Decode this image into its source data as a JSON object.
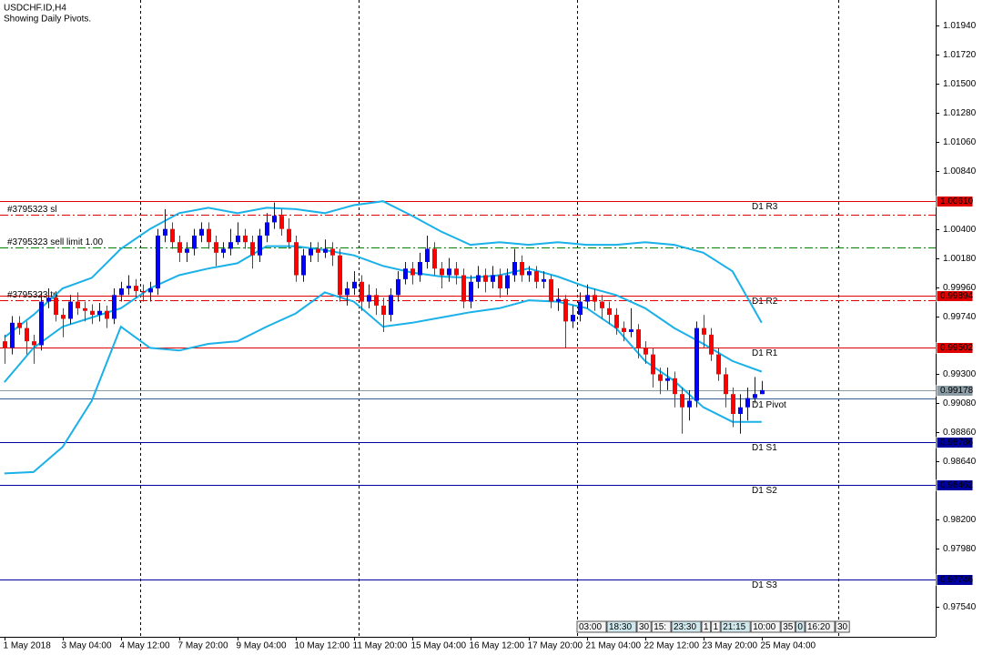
{
  "chart_data": {
    "type": "candlestick",
    "title": "USDCHF.ID,H4",
    "subtitle": "Showing Daily Pivots.",
    "xlim": [
      -0.6,
      127.9
    ],
    "ylim": [
      0.97313,
      1.02133
    ],
    "xticks": [
      {
        "value": 0,
        "label": "1 May 2018"
      },
      {
        "value": 8,
        "label": "3 May 04:00"
      },
      {
        "value": 16,
        "label": "4 May 12:00"
      },
      {
        "value": 24,
        "label": "7 May 20:00"
      },
      {
        "value": 32,
        "label": "9 May 04:00"
      },
      {
        "value": 40,
        "label": "10 May 12:00"
      },
      {
        "value": 48,
        "label": "11 May 20:00"
      },
      {
        "value": 56,
        "label": "15 May 04:00"
      },
      {
        "value": 64,
        "label": "16 May 12:00"
      },
      {
        "value": 72,
        "label": "17 May 20:00"
      },
      {
        "value": 80,
        "label": "21 May 04:00"
      },
      {
        "value": 88,
        "label": "22 May 12:00"
      },
      {
        "value": 96,
        "label": "23 May 20:00"
      },
      {
        "value": 104,
        "label": "25 May 04:00"
      }
    ],
    "yticks": [
      {
        "value": 1.0194,
        "label": "1.01940"
      },
      {
        "value": 1.0172,
        "label": "1.01720"
      },
      {
        "value": 1.015,
        "label": "1.01500"
      },
      {
        "value": 1.0128,
        "label": "1.01280"
      },
      {
        "value": 1.0106,
        "label": "1.01060"
      },
      {
        "value": 1.0084,
        "label": "1.00840"
      },
      {
        "value": 1.004,
        "label": "1.00400"
      },
      {
        "value": 1.0018,
        "label": "1.00180"
      },
      {
        "value": 0.9996,
        "label": "0.99960"
      },
      {
        "value": 0.9974,
        "label": "0.99740"
      },
      {
        "value": 0.993,
        "label": "0.99300"
      },
      {
        "value": 0.9908,
        "label": "0.99080"
      },
      {
        "value": 0.9886,
        "label": "0.98860"
      },
      {
        "value": 0.9864,
        "label": "0.98640"
      },
      {
        "value": 0.982,
        "label": "0.98200"
      },
      {
        "value": 0.9798,
        "label": "0.97980"
      },
      {
        "value": 0.9754,
        "label": "0.97540"
      }
    ],
    "up_color": "#0000ff",
    "down_color": "#ff0000",
    "open": [
      0.9955,
      0.995,
      0.9969,
      0.9965,
      0.9955,
      0.9952,
      0.9985,
      0.9988,
      0.9975,
      0.9972,
      0.9985,
      0.998,
      0.9978,
      0.9975,
      0.9978,
      0.9972,
      0.999,
      0.9995,
      0.9997,
      0.9993,
      0.9992,
      0.9995,
      1.0035,
      1.004,
      1.003,
      1.0022,
      1.0025,
      1.0035,
      1.004,
      1.003,
      1.0022,
      1.0025,
      1.003,
      1.0035,
      1.003,
      1.002,
      1.0035,
      1.0045,
      1.005,
      1.004,
      1.003,
      1.0005,
      1.002,
      1.0025,
      1.0022,
      1.0025,
      1.002,
      0.999,
      0.9995,
      1.0,
      0.9985,
      0.999,
      0.9982,
      0.9975,
      0.999,
      1.0002,
      1.001,
      1.0005,
      1.0015,
      1.0025,
      1.001,
      1.0005,
      1.001,
      1.0005,
      0.9985,
      1.0,
      1.0005,
      1.0,
      1.0005,
      0.9995,
      1.0005,
      1.0015,
      1.0005,
      1.0008,
      1.0,
      1.0002,
      0.9985,
      0.9987,
      0.997,
      0.9975,
      0.9985,
      0.999,
      0.9985,
      0.998,
      0.9975,
      0.9965,
      0.9962,
      0.9964,
      0.995,
      0.9945,
      0.993,
      0.9925,
      0.9927,
      0.9915,
      0.9905,
      0.991,
      0.9965,
      0.996,
      0.9945,
      0.993,
      0.9915,
      0.99,
      0.9905,
      0.9912,
      0.9915
    ],
    "high": [
      0.996,
      0.9974,
      0.9974,
      0.997,
      0.996,
      0.9992,
      0.9995,
      0.9993,
      0.998,
      0.999,
      0.9992,
      0.9985,
      0.9983,
      0.9984,
      0.9982,
      0.9995,
      1.0,
      1.0005,
      1.0002,
      0.9998,
      1.0,
      1.004,
      1.0055,
      1.0045,
      1.0035,
      1.003,
      1.004,
      1.0045,
      1.0045,
      1.0035,
      1.003,
      1.004,
      1.0045,
      1.004,
      1.0035,
      1.004,
      1.0052,
      1.006,
      1.0055,
      1.0048,
      1.0035,
      1.0025,
      1.003,
      1.003,
      1.0032,
      1.003,
      1.0025,
      1.0,
      1.0008,
      1.0005,
      0.9998,
      0.9995,
      0.9988,
      0.9995,
      1.0008,
      1.0015,
      1.0015,
      1.0022,
      1.0035,
      1.003,
      1.0015,
      1.0018,
      1.0015,
      1.001,
      1.0005,
      1.0012,
      1.001,
      1.0012,
      1.001,
      1.001,
      1.0025,
      1.002,
      1.0012,
      1.0012,
      1.0008,
      1.0005,
      0.9995,
      0.999,
      0.9982,
      0.9992,
      0.9998,
      0.9995,
      0.999,
      0.9985,
      0.998,
      0.997,
      0.998,
      0.9968,
      0.9955,
      0.995,
      0.9935,
      0.9935,
      0.9932,
      0.992,
      0.9918,
      0.997,
      0.9975,
      0.9965,
      0.995,
      0.9935,
      0.992,
      0.9915,
      0.992,
      0.9928,
      0.9925
    ],
    "low": [
      0.9938,
      0.9945,
      0.996,
      0.9945,
      0.9938,
      0.9948,
      0.998,
      0.997,
      0.9958,
      0.9968,
      0.9975,
      0.997,
      0.9968,
      0.997,
      0.9965,
      0.9968,
      0.9985,
      0.999,
      0.9988,
      0.9985,
      0.9985,
      0.999,
      1.003,
      1.0025,
      1.0015,
      1.0015,
      1.002,
      1.003,
      1.0025,
      1.0012,
      1.0018,
      1.002,
      1.0028,
      1.0025,
      1.001,
      1.0015,
      1.003,
      1.004,
      1.0035,
      1.0025,
      1.0,
      1.0,
      1.0015,
      1.0015,
      1.0018,
      1.0012,
      0.9985,
      0.9982,
      0.999,
      0.9978,
      0.998,
      0.9975,
      0.9962,
      0.997,
      0.9985,
      0.9998,
      0.9998,
      1.0,
      1.001,
      1.0005,
      0.9995,
      1.0,
      0.9998,
      0.998,
      0.998,
      0.9995,
      0.9992,
      0.9995,
      0.9988,
      0.999,
      1.0,
      1.0,
      1.0,
      0.9995,
      0.9995,
      0.998,
      0.9978,
      0.995,
      0.9965,
      0.997,
      0.998,
      0.9978,
      0.9972,
      0.9968,
      0.996,
      0.9955,
      0.9958,
      0.9942,
      0.9938,
      0.992,
      0.9915,
      0.9918,
      0.9905,
      0.9885,
      0.9895,
      0.9905,
      0.995,
      0.994,
      0.9925,
      0.9905,
      0.989,
      0.9885,
      0.9895,
      0.9908,
      0.9915
    ],
    "close": [
      0.995,
      0.9969,
      0.9965,
      0.9955,
      0.9952,
      0.9985,
      0.9988,
      0.9975,
      0.9972,
      0.9985,
      0.998,
      0.9978,
      0.9975,
      0.9978,
      0.9972,
      0.999,
      0.9995,
      0.9997,
      0.9993,
      0.9992,
      0.9995,
      1.0035,
      1.004,
      1.003,
      1.0022,
      1.0025,
      1.0035,
      1.004,
      1.003,
      1.0022,
      1.0025,
      1.003,
      1.0035,
      1.003,
      1.002,
      1.0035,
      1.0045,
      1.005,
      1.004,
      1.003,
      1.0005,
      1.002,
      1.0025,
      1.0022,
      1.0025,
      1.002,
      0.999,
      0.9995,
      1.0,
      0.9985,
      0.999,
      0.9982,
      0.9975,
      0.999,
      1.0002,
      1.001,
      1.0005,
      1.0015,
      1.0025,
      1.001,
      1.0005,
      1.001,
      1.0005,
      0.9985,
      1.0,
      1.0005,
      1.0,
      1.0005,
      0.9995,
      1.0005,
      1.0015,
      1.0005,
      1.0008,
      1.0,
      1.0002,
      0.9985,
      0.9987,
      0.997,
      0.9975,
      0.9985,
      0.999,
      0.9985,
      0.998,
      0.9975,
      0.9965,
      0.9962,
      0.9964,
      0.995,
      0.9945,
      0.993,
      0.9925,
      0.9927,
      0.9915,
      0.9905,
      0.991,
      0.9965,
      0.996,
      0.9945,
      0.993,
      0.9915,
      0.99,
      0.9905,
      0.9912,
      0.9915,
      0.9918
    ],
    "bands": [
      {
        "color": "#1ab0e8",
        "x": [
          0,
          4,
          8,
          12,
          16,
          20,
          24,
          28,
          32,
          36,
          40,
          44,
          48,
          52,
          56,
          60,
          64,
          68,
          72,
          76,
          80,
          84,
          88,
          92,
          96,
          100,
          104
        ],
        "values": [
          0.9958,
          0.9975,
          0.9995,
          1.0003,
          1.0025,
          1.004,
          1.0052,
          1.0056,
          1.0052,
          1.0056,
          1.0055,
          1.0052,
          1.0058,
          1.0061,
          1.005,
          1.0038,
          1.0028,
          1.003,
          1.0028,
          1.003,
          1.0028,
          1.0028,
          1.003,
          1.0028,
          1.0022,
          1.0008,
          0.9969
        ]
      },
      {
        "color": "#1ab0e8",
        "x": [
          0,
          4,
          8,
          12,
          16,
          20,
          24,
          28,
          32,
          36,
          40,
          44,
          48,
          52,
          56,
          60,
          64,
          68,
          72,
          76,
          80,
          84,
          88,
          92,
          96,
          100,
          104
        ],
        "values": [
          0.9924,
          0.995,
          0.9966,
          0.9973,
          0.998,
          0.9995,
          1.0005,
          1.001,
          1.0014,
          1.0027,
          1.0027,
          1.0024,
          1.002,
          1.0012,
          1.0007,
          1.0004,
          1.0003,
          1.0005,
          1.001,
          1.0004,
          0.9996,
          0.999,
          0.998,
          0.9965,
          0.9953,
          0.994,
          0.9932
        ]
      },
      {
        "color": "#1ab0e8",
        "x": [
          0,
          4,
          8,
          12,
          16,
          20,
          24,
          28,
          32,
          36,
          40,
          44,
          48,
          52,
          56,
          60,
          64,
          68,
          72,
          76,
          80,
          84,
          88,
          92,
          96,
          100,
          104
        ],
        "values": [
          0.9855,
          0.9856,
          0.9875,
          0.991,
          0.9966,
          0.995,
          0.9948,
          0.9953,
          0.9955,
          0.9966,
          0.9976,
          0.9992,
          0.9985,
          0.9966,
          0.9969,
          0.9973,
          0.9977,
          0.998,
          0.9986,
          0.9985,
          0.998,
          0.9965,
          0.994,
          0.9925,
          0.9905,
          0.9894,
          0.9894
        ]
      }
    ],
    "levels": [
      {
        "label": "D1 R3",
        "value": 1.0061,
        "value_label": "1.00610",
        "color": "#e00000"
      },
      {
        "label": "D1 R2",
        "value": 0.99894,
        "value_label": "0.99894",
        "color": "#e00000"
      },
      {
        "label": "D1 R1",
        "value": 0.99502,
        "value_label": "0.99502",
        "color": "#e00000"
      },
      {
        "label": "D1 Pivot",
        "value": 0.99118,
        "color": "#3a5a9a"
      },
      {
        "label": "D1 S1",
        "value": 0.98786,
        "value_label": "0.98786",
        "color": "#0000a0"
      },
      {
        "label": "D1 S2",
        "value": 0.98462,
        "value_label": "0.98462",
        "color": "#0000a0"
      },
      {
        "label": "D1 S3",
        "value": 0.97746,
        "value_label": "0.97746",
        "color": "#0000a0"
      }
    ],
    "orders": [
      {
        "label": "#3795323 sl",
        "value": 1.0051,
        "color": "#e00000"
      },
      {
        "label": "#3795323 sell limit 1.00",
        "value": 1.0026,
        "color": "#008000"
      },
      {
        "label": "#3795323 tp",
        "value": 0.9986,
        "color": "#e00000"
      }
    ],
    "bid": {
      "value": 0.99178,
      "value_label": "0.99178",
      "color": "#8c9ca4"
    },
    "time_markers": [
      "03:00",
      "18:30",
      "30",
      "15:",
      "23:30",
      "1",
      "1",
      "21:15",
      "10:00",
      "35",
      "0",
      "16:20",
      "30"
    ]
  }
}
